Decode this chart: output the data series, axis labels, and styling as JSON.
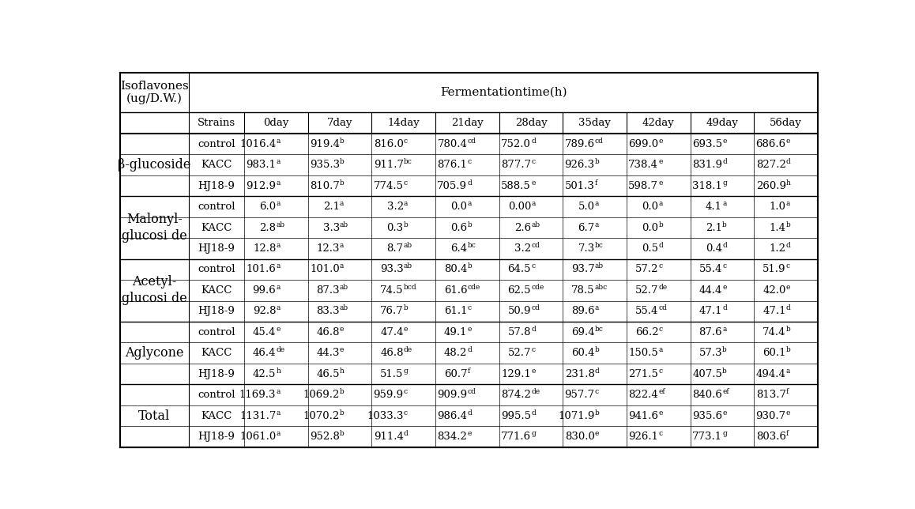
{
  "col_headers": [
    "Strains",
    "0day",
    "7day",
    "14day",
    "21day",
    "28day",
    "35day",
    "42day",
    "49day",
    "56day"
  ],
  "sections": [
    {
      "name": "β-glucoside",
      "rows": [
        [
          "control",
          [
            "1016.4",
            "a"
          ],
          [
            "919.4",
            "b"
          ],
          [
            "816.0",
            "c"
          ],
          [
            "780.4",
            "cd"
          ],
          [
            "752.0",
            "d"
          ],
          [
            "789.6",
            "cd"
          ],
          [
            "699.0",
            "e"
          ],
          [
            "693.5",
            "e"
          ],
          [
            "686.6",
            "e"
          ]
        ],
        [
          "KACC",
          [
            "983.1",
            "a"
          ],
          [
            "935.3",
            "b"
          ],
          [
            "911.7",
            "bc"
          ],
          [
            "876.1",
            "c"
          ],
          [
            "877.7",
            "c"
          ],
          [
            "926.3",
            "b"
          ],
          [
            "738.4",
            "e"
          ],
          [
            "831.9",
            "d"
          ],
          [
            "827.2",
            "d"
          ]
        ],
        [
          "HJ18-9",
          [
            "912.9",
            "a"
          ],
          [
            "810.7",
            "b"
          ],
          [
            "774.5",
            "c"
          ],
          [
            "705.9",
            "d"
          ],
          [
            "588.5",
            "e"
          ],
          [
            "501.3",
            "f"
          ],
          [
            "598.7",
            "e"
          ],
          [
            "318.1",
            "g"
          ],
          [
            "260.9",
            "h"
          ]
        ]
      ]
    },
    {
      "name": "Malonyl-\nglucosi de",
      "rows": [
        [
          "control",
          [
            "6.0",
            "a"
          ],
          [
            "2.1",
            "a"
          ],
          [
            "3.2",
            "a"
          ],
          [
            "0.0",
            "a"
          ],
          [
            "0.00",
            "a"
          ],
          [
            "5.0",
            "a"
          ],
          [
            "0.0",
            "a"
          ],
          [
            "4.1",
            "a"
          ],
          [
            "1.0",
            "a"
          ]
        ],
        [
          "KACC",
          [
            "2.8",
            "ab"
          ],
          [
            "3.3",
            "ab"
          ],
          [
            "0.3",
            "b"
          ],
          [
            "0.6",
            "b"
          ],
          [
            "2.6",
            "ab"
          ],
          [
            "6.7",
            "a"
          ],
          [
            "0.0",
            "b"
          ],
          [
            "2.1",
            "b"
          ],
          [
            "1.4",
            "b"
          ]
        ],
        [
          "HJ18-9",
          [
            "12.8",
            "a"
          ],
          [
            "12.3",
            "a"
          ],
          [
            "8.7",
            "ab"
          ],
          [
            "6.4",
            "bc"
          ],
          [
            "3.2",
            "cd"
          ],
          [
            "7.3",
            "bc"
          ],
          [
            "0.5",
            "d"
          ],
          [
            "0.4",
            "d"
          ],
          [
            "1.2",
            "d"
          ]
        ]
      ]
    },
    {
      "name": "Acetyl-\nglucosi de",
      "rows": [
        [
          "control",
          [
            "101.6",
            "a"
          ],
          [
            "101.0",
            "a"
          ],
          [
            "93.3",
            "ab"
          ],
          [
            "80.4",
            "b"
          ],
          [
            "64.5",
            "c"
          ],
          [
            "93.7",
            "ab"
          ],
          [
            "57.2",
            "c"
          ],
          [
            "55.4",
            "c"
          ],
          [
            "51.9",
            "c"
          ]
        ],
        [
          "KACC",
          [
            "99.6",
            "a"
          ],
          [
            "87.3",
            "ab"
          ],
          [
            "74.5",
            "bcd"
          ],
          [
            "61.6",
            "cde"
          ],
          [
            "62.5",
            "cde"
          ],
          [
            "78.5",
            "abc"
          ],
          [
            "52.7",
            "de"
          ],
          [
            "44.4",
            "e"
          ],
          [
            "42.0",
            "e"
          ]
        ],
        [
          "HJ18-9",
          [
            "92.8",
            "a"
          ],
          [
            "83.3",
            "ab"
          ],
          [
            "76.7",
            "b"
          ],
          [
            "61.1",
            "c"
          ],
          [
            "50.9",
            "cd"
          ],
          [
            "89.6",
            "a"
          ],
          [
            "55.4",
            "cd"
          ],
          [
            "47.1",
            "d"
          ],
          [
            "47.1",
            "d"
          ]
        ]
      ]
    },
    {
      "name": "Aglycone",
      "rows": [
        [
          "control",
          [
            "45.4",
            "e"
          ],
          [
            "46.8",
            "e"
          ],
          [
            "47.4",
            "e"
          ],
          [
            "49.1",
            "e"
          ],
          [
            "57.8",
            "d"
          ],
          [
            "69.4",
            "bc"
          ],
          [
            "66.2",
            "c"
          ],
          [
            "87.6",
            "a"
          ],
          [
            "74.4",
            "b"
          ]
        ],
        [
          "KACC",
          [
            "46.4",
            "de"
          ],
          [
            "44.3",
            "e"
          ],
          [
            "46.8",
            "de"
          ],
          [
            "48.2",
            "d"
          ],
          [
            "52.7",
            "c"
          ],
          [
            "60.4",
            "b"
          ],
          [
            "150.5",
            "a"
          ],
          [
            "57.3",
            "b"
          ],
          [
            "60.1",
            "b"
          ]
        ],
        [
          "HJ18-9",
          [
            "42.5",
            "h"
          ],
          [
            "46.5",
            "h"
          ],
          [
            "51.5",
            "g"
          ],
          [
            "60.7",
            "f"
          ],
          [
            "129.1",
            "e"
          ],
          [
            "231.8",
            "d"
          ],
          [
            "271.5",
            "c"
          ],
          [
            "407.5",
            "b"
          ],
          [
            "494.4",
            "a"
          ]
        ]
      ]
    },
    {
      "name": "Total",
      "rows": [
        [
          "control",
          [
            "1169.3",
            "a"
          ],
          [
            "1069.2",
            "b"
          ],
          [
            "959.9",
            "c"
          ],
          [
            "909.9",
            "cd"
          ],
          [
            "874.2",
            "de"
          ],
          [
            "957.7",
            "c"
          ],
          [
            "822.4",
            "ef"
          ],
          [
            "840.6",
            "ef"
          ],
          [
            "813.7",
            "f"
          ]
        ],
        [
          "KACC",
          [
            "1131.7",
            "a"
          ],
          [
            "1070.2",
            "b"
          ],
          [
            "1033.3",
            "c"
          ],
          [
            "986.4",
            "d"
          ],
          [
            "995.5",
            "d"
          ],
          [
            "1071.9",
            "b"
          ],
          [
            "941.6",
            "e"
          ],
          [
            "935.6",
            "e"
          ],
          [
            "930.7",
            "e"
          ]
        ],
        [
          "HJ18-9",
          [
            "1061.0",
            "a"
          ],
          [
            "952.8",
            "b"
          ],
          [
            "911.4",
            "d"
          ],
          [
            "834.2",
            "e"
          ],
          [
            "771.6",
            "g"
          ],
          [
            "830.0",
            "e"
          ],
          [
            "926.1",
            "c"
          ],
          [
            "773.1",
            "g"
          ],
          [
            "803.6",
            "f"
          ]
        ]
      ]
    }
  ],
  "bg_color": "white",
  "text_color": "black",
  "line_color": "black",
  "font_size": 9.5,
  "sup_font_size": 6.5,
  "header_font_size": 11.0,
  "section_font_size": 11.5
}
